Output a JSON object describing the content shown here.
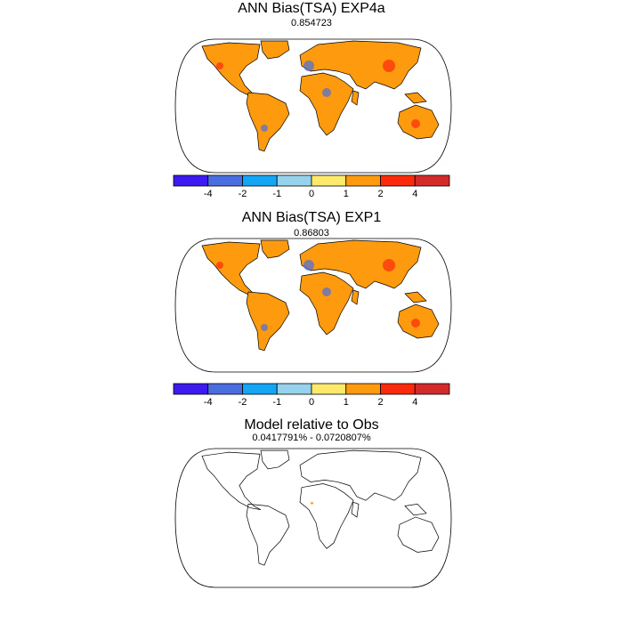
{
  "panels": [
    {
      "title": "ANN Bias(TSA) EXP4a",
      "subtitle": "0.854723",
      "colorbar": {
        "colors": [
          "#3d1af0",
          "#4a6ee0",
          "#14a5f5",
          "#96d2ec",
          "#fde96b",
          "#fd9a0e",
          "#fb2a0b",
          "#d32b2b"
        ],
        "labels": [
          -4,
          -2,
          -1,
          0,
          1,
          2,
          4
        ]
      }
    },
    {
      "title": "ANN Bias(TSA) EXP1",
      "subtitle": "0.86803",
      "colorbar": {
        "colors": [
          "#3d1af0",
          "#4a6ee0",
          "#14a5f5",
          "#96d2ec",
          "#fde96b",
          "#fd9a0e",
          "#fb2a0b",
          "#d32b2b"
        ],
        "labels": [
          -4,
          -2,
          -1,
          0,
          1,
          2,
          4
        ]
      }
    },
    {
      "title": "Model relative to Obs",
      "subtitle": "0.0417791% - 0.0720807%"
    }
  ]
}
